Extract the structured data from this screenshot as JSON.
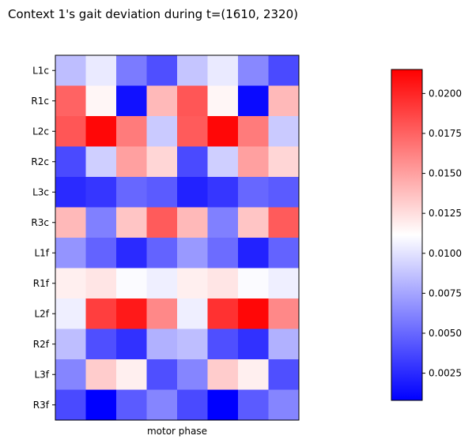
{
  "chart_data": {
    "type": "heatmap",
    "title": "Context 1's gait deviation during t=(1610, 2320)",
    "xlabel": "motor phase",
    "ylabel": "",
    "rows": [
      "L1c",
      "R1c",
      "L2c",
      "R2c",
      "L3c",
      "R3c",
      "L1f",
      "R1f",
      "L2f",
      "R2f",
      "L3f",
      "R3f"
    ],
    "colormap": "bwr",
    "colormap_colors": [
      "#0000ff",
      "#ffffff",
      "#ff0000"
    ],
    "vmin": 0.0008,
    "vmax": 0.0215,
    "colorbar_ticks": [
      "0.0025",
      "0.0050",
      "0.0075",
      "0.0100",
      "0.0125",
      "0.0150",
      "0.0175",
      "0.0200"
    ],
    "colorbar_tick_values": [
      0.0025,
      0.005,
      0.0075,
      0.01,
      0.0125,
      0.015,
      0.0175,
      0.02
    ],
    "values": [
      [
        0.0085,
        0.0103,
        0.0058,
        0.004,
        0.0088,
        0.0103,
        0.0063,
        0.0038
      ],
      [
        0.0175,
        0.0115,
        0.0015,
        0.014,
        0.018,
        0.0115,
        0.0012,
        0.014
      ],
      [
        0.018,
        0.0212,
        0.0165,
        0.009,
        0.0178,
        0.0212,
        0.0165,
        0.009
      ],
      [
        0.0038,
        0.0092,
        0.015,
        0.0128,
        0.0038,
        0.0092,
        0.015,
        0.0128
      ],
      [
        0.0025,
        0.003,
        0.005,
        0.0045,
        0.0022,
        0.003,
        0.005,
        0.0045
      ],
      [
        0.014,
        0.006,
        0.0135,
        0.0178,
        0.014,
        0.006,
        0.0135,
        0.0178
      ],
      [
        0.0068,
        0.0048,
        0.0025,
        0.0048,
        0.007,
        0.0052,
        0.0022,
        0.0048
      ],
      [
        0.0118,
        0.0122,
        0.011,
        0.0105,
        0.0118,
        0.0122,
        0.011,
        0.0105
      ],
      [
        0.0105,
        0.019,
        0.0205,
        0.016,
        0.0105,
        0.0195,
        0.0212,
        0.016
      ],
      [
        0.0085,
        0.004,
        0.0028,
        0.008,
        0.0085,
        0.004,
        0.0028,
        0.008
      ],
      [
        0.0062,
        0.0132,
        0.0118,
        0.004,
        0.0062,
        0.0132,
        0.0118,
        0.004
      ],
      [
        0.0038,
        0.0008,
        0.0045,
        0.0062,
        0.0038,
        0.0008,
        0.0045,
        0.0062
      ]
    ]
  }
}
